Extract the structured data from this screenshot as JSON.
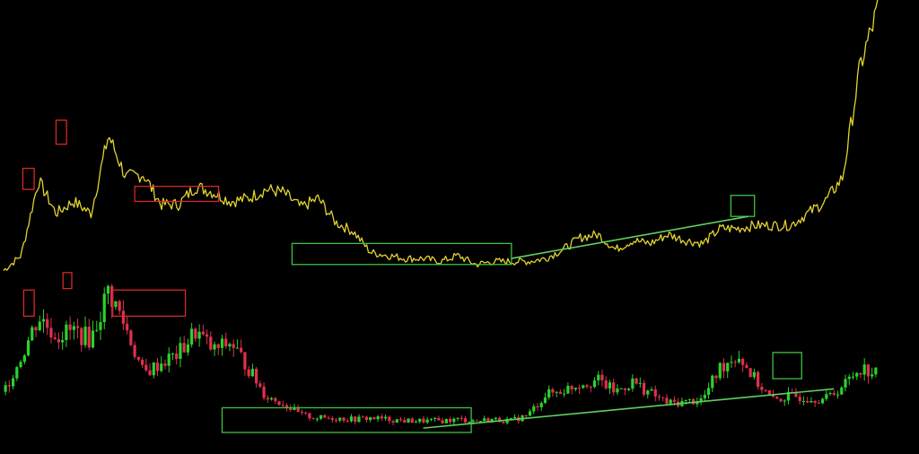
{
  "colors": {
    "background": "#000000",
    "line": "#e3d232",
    "candle_up": "#2bd22b",
    "candle_down": "#e0304f",
    "box_red": "#d62828",
    "box_green": "#3ec23e",
    "trendline": "#5fcf5f"
  },
  "chart_data": [
    {
      "type": "line",
      "ylim": [
        0,
        100
      ],
      "grid": false,
      "x": [
        0,
        2,
        4,
        6,
        8,
        10,
        12,
        14,
        16,
        18,
        20,
        22,
        24,
        26,
        28,
        30,
        32,
        34,
        36,
        38,
        40,
        42,
        44,
        46,
        48,
        50,
        52,
        54,
        56,
        58,
        60,
        62,
        64,
        66,
        68,
        70,
        72,
        74,
        76,
        78,
        80,
        82,
        84,
        86,
        88,
        90,
        92,
        94,
        96,
        98,
        100
      ],
      "values": [
        10,
        15,
        40,
        29,
        33,
        29,
        55,
        41,
        42,
        32,
        32,
        38,
        36,
        33,
        34,
        37,
        36,
        31,
        34,
        26,
        23,
        16,
        15,
        14,
        14,
        13,
        15,
        12,
        13,
        13,
        13,
        14,
        17,
        21,
        22,
        17,
        20,
        19,
        22,
        20,
        19,
        24,
        24,
        25,
        25,
        25,
        29,
        33,
        41,
        78,
        97
      ]
    },
    {
      "type": "candlestick",
      "ylim": [
        0,
        100
      ],
      "grid": false,
      "x": [
        0,
        2,
        4,
        6,
        8,
        10,
        12,
        14,
        16,
        18,
        20,
        22,
        24,
        26,
        28,
        30,
        32,
        34,
        36,
        38,
        40,
        42,
        44,
        46,
        48,
        50,
        52,
        54,
        56,
        58,
        60,
        62,
        64,
        66,
        68,
        70,
        72,
        74,
        76,
        78,
        80,
        82,
        84,
        86,
        88,
        90,
        92,
        94,
        96,
        98,
        100
      ],
      "values": [
        28,
        52,
        80,
        67,
        70,
        64,
        98,
        72,
        40,
        48,
        54,
        70,
        56,
        62,
        44,
        25,
        20,
        12,
        10,
        10,
        9,
        10,
        9,
        8,
        8,
        8,
        9,
        8,
        9,
        8,
        12,
        26,
        29,
        34,
        36,
        28,
        35,
        27,
        20,
        21,
        23,
        45,
        54,
        36,
        22,
        25,
        24,
        23,
        32,
        45,
        40
      ]
    }
  ],
  "annotations": {
    "red_boxes": [
      {
        "panel": 0,
        "x0": 2.2,
        "x1": 3.5,
        "y_low": 37,
        "y_high": 44
      },
      {
        "panel": 0,
        "x0": 6.0,
        "x1": 7.2,
        "y_low": 52,
        "y_high": 60
      },
      {
        "panel": 0,
        "x0": 15.0,
        "x1": 24.6,
        "y_low": 33,
        "y_high": 38
      },
      {
        "panel": 1,
        "x0": 2.3,
        "x1": 3.5,
        "y_low": 80,
        "y_high": 98
      },
      {
        "panel": 1,
        "x0": 6.8,
        "x1": 7.8,
        "y_low": 99,
        "y_high": 110
      },
      {
        "panel": 1,
        "x0": 12.5,
        "x1": 20.8,
        "y_low": 80,
        "y_high": 98
      }
    ],
    "green_boxes": [
      {
        "panel": 0,
        "x0": 33.0,
        "x1": 58.1,
        "y_low": 12,
        "y_high": 19
      },
      {
        "panel": 0,
        "x0": 83.2,
        "x1": 85.9,
        "y_low": 28,
        "y_high": 35
      },
      {
        "panel": 1,
        "x0": 25.0,
        "x1": 53.5,
        "y_low": 0,
        "y_high": 17
      },
      {
        "panel": 1,
        "x0": 88.0,
        "x1": 91.3,
        "y_low": 37,
        "y_high": 55
      }
    ],
    "trend_lines": [
      {
        "panel": 0,
        "x0": 58.1,
        "y0": 14,
        "x1": 85.2,
        "y1": 28
      },
      {
        "panel": 1,
        "x0": 48.0,
        "y0": 3,
        "x1": 95.0,
        "y1": 30
      }
    ]
  }
}
